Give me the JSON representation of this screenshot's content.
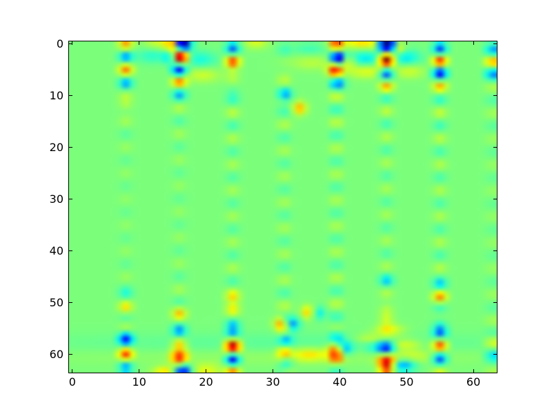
{
  "figure": {
    "background_color": "#ffffff",
    "axes_border_color": "#000000",
    "tick_color": "#000000",
    "tick_label_color": "#000000"
  },
  "chart_data": {
    "type": "heatmap",
    "title": "",
    "xlabel": "",
    "ylabel": "",
    "colormap": "jet",
    "interpolation": "bilinear",
    "grid_size": [
      64,
      64
    ],
    "xlim": [
      -0.5,
      63.5
    ],
    "ylim": [
      63.5,
      -0.5
    ],
    "origin": "upper",
    "background_value": 0,
    "background_color": "#7dff75",
    "value_range": [
      -1,
      1
    ],
    "x_ticks": [
      0,
      10,
      20,
      30,
      40,
      50,
      60
    ],
    "y_ticks": [
      0,
      10,
      20,
      30,
      40,
      50,
      60
    ],
    "x_tick_labels": [
      "0",
      "10",
      "20",
      "30",
      "40",
      "50",
      "60"
    ],
    "y_tick_labels": [
      "0",
      "10",
      "20",
      "30",
      "40",
      "50",
      "60"
    ],
    "grid": false,
    "legend": false,
    "stripe_period_rows": 5.0,
    "stripe_sigma_x": 0.7,
    "stripe_envelope_sigma": 14,
    "columns": [
      {
        "x": 8.0,
        "y0": 0.0,
        "amp_top": 0.2,
        "amp_mid": 0.05,
        "amp_bottom": 0.18
      },
      {
        "x": 16.0,
        "y0": 2.4,
        "amp_top": 0.22,
        "amp_mid": 0.06,
        "amp_bottom": 0.2
      },
      {
        "x": 24.0,
        "y0": 3.3,
        "amp_top": 0.25,
        "amp_mid": 0.1,
        "amp_bottom": 0.22
      },
      {
        "x": 31.7,
        "y0": 0.6,
        "amp_top": 0.22,
        "amp_mid": 0.1,
        "amp_bottom": 0.2
      },
      {
        "x": 39.5,
        "y0": 0.2,
        "amp_top": 0.28,
        "amp_mid": 0.12,
        "amp_bottom": 0.22
      },
      {
        "x": 47.0,
        "y0": 3.0,
        "amp_top": 0.26,
        "amp_mid": 0.1,
        "amp_bottom": 0.22
      },
      {
        "x": 55.0,
        "y0": 3.3,
        "amp_top": 0.28,
        "amp_mid": 0.12,
        "amp_bottom": 0.25
      },
      {
        "x": 62.8,
        "y0": 3.4,
        "amp_top": 0.15,
        "amp_mid": 0.06,
        "amp_bottom": 0.12
      }
    ],
    "blobs": [
      [
        8,
        0.3,
        0.3
      ],
      [
        8,
        2.4,
        -0.3
      ],
      [
        8,
        5.0,
        0.4
      ],
      [
        8,
        7.6,
        -0.3
      ],
      [
        8,
        12,
        0.2
      ],
      [
        15.0,
        0.2,
        0.55
      ],
      [
        16.6,
        0.2,
        -1.0,
        0.8,
        0.9
      ],
      [
        14.8,
        2.6,
        -0.4
      ],
      [
        16.2,
        2.6,
        1.0,
        0.8,
        1.0
      ],
      [
        16,
        5.1,
        -0.65
      ],
      [
        16,
        7.3,
        0.45
      ],
      [
        16,
        9.7,
        -0.3
      ],
      [
        12,
        2.3,
        -0.2,
        1.8,
        1.0
      ],
      [
        13,
        0.1,
        0.2,
        1.5,
        0.7
      ],
      [
        19,
        3.0,
        -0.25,
        1.8,
        1.1
      ],
      [
        19.5,
        6.0,
        0.2,
        1.8,
        1.0
      ],
      [
        24,
        1.1,
        -0.35
      ],
      [
        24,
        3.4,
        0.5
      ],
      [
        24,
        6.0,
        0.35
      ],
      [
        24,
        8.5,
        -0.25
      ],
      [
        27.5,
        0.1,
        0.22,
        1.2,
        0.6
      ],
      [
        31.7,
        0.9,
        -0.35
      ],
      [
        31.7,
        3.1,
        0.25
      ],
      [
        31.7,
        5.4,
        -0.2
      ],
      [
        31.7,
        7.6,
        0.3
      ],
      [
        31.8,
        9.9,
        -0.55
      ],
      [
        34,
        12.4,
        0.45
      ],
      [
        35.5,
        1.0,
        -0.15,
        1.8,
        0.8
      ],
      [
        36,
        3.6,
        0.15,
        2.5,
        1.0
      ],
      [
        39.5,
        0.1,
        0.4
      ],
      [
        39.8,
        2.7,
        -0.7
      ],
      [
        41.3,
        3.3,
        0.35
      ],
      [
        39.3,
        5.1,
        0.6
      ],
      [
        39.8,
        7.6,
        -0.35
      ],
      [
        43.5,
        0.0,
        0.35,
        2.2,
        0.7
      ],
      [
        43.8,
        2.8,
        -0.3,
        2.5,
        1.0
      ],
      [
        44,
        5.3,
        0.25,
        2.2,
        0.9
      ],
      [
        45.3,
        0.3,
        0.3
      ],
      [
        47,
        0.1,
        -1.0,
        1.3,
        1.0
      ],
      [
        48.8,
        0.6,
        0.5
      ],
      [
        47,
        3.1,
        0.95,
        0.8,
        1.0
      ],
      [
        47,
        6.0,
        -0.5
      ],
      [
        47,
        8.2,
        0.3
      ],
      [
        50,
        2.6,
        -0.3,
        1.5,
        1.0
      ],
      [
        50.5,
        5.3,
        0.2,
        1.5,
        0.9
      ],
      [
        55,
        1.2,
        -0.4
      ],
      [
        55,
        3.3,
        0.55
      ],
      [
        55,
        5.6,
        -0.6
      ],
      [
        55,
        8,
        0.25
      ],
      [
        62.8,
        1.4,
        -0.35
      ],
      [
        62.8,
        3.4,
        0.4
      ],
      [
        62.8,
        5.7,
        -0.4
      ],
      [
        8,
        48.5,
        -0.2
      ],
      [
        8,
        51,
        0.3
      ],
      [
        8,
        56.9,
        -0.6
      ],
      [
        8,
        59.9,
        0.55
      ],
      [
        8,
        62.2,
        -0.3
      ],
      [
        16,
        52,
        0.3
      ],
      [
        16,
        55.6,
        -0.35
      ],
      [
        16,
        58.2,
        0.25
      ],
      [
        16,
        60.4,
        0.9,
        0.8,
        1.0
      ],
      [
        16.4,
        63.1,
        -0.95,
        0.9,
        0.9
      ],
      [
        14,
        63.2,
        0.35,
        1.3,
        0.7
      ],
      [
        20,
        62.9,
        0.25,
        1.6,
        0.8
      ],
      [
        24,
        48.9,
        0.25
      ],
      [
        24,
        51.2,
        0.45
      ],
      [
        24,
        53.9,
        -0.45
      ],
      [
        24,
        56.2,
        -0.25
      ],
      [
        24,
        58.4,
        0.85,
        0.8,
        1.1
      ],
      [
        24,
        61.0,
        -0.7
      ],
      [
        24,
        63.2,
        0.35
      ],
      [
        31.2,
        54.0,
        0.5
      ],
      [
        33.0,
        54.1,
        -0.45
      ],
      [
        32,
        57.0,
        -0.3
      ],
      [
        31.7,
        59.2,
        0.4
      ],
      [
        32,
        61.4,
        -0.35
      ],
      [
        32,
        63.2,
        0.25
      ],
      [
        35.3,
        51.8,
        0.4
      ],
      [
        36.8,
        52.0,
        -0.3
      ],
      [
        35.5,
        60.0,
        0.3,
        2.2,
        0.9
      ],
      [
        39.5,
        56.2,
        -0.3
      ],
      [
        39.2,
        58.8,
        0.5
      ],
      [
        41.0,
        58.9,
        -0.35
      ],
      [
        39.5,
        60.9,
        0.45
      ],
      [
        44.5,
        56.9,
        0.2,
        1.5,
        0.7
      ],
      [
        45.5,
        58.7,
        -0.2,
        1.2,
        0.8
      ],
      [
        47.5,
        55.3,
        0.25,
        1.5,
        0.8
      ],
      [
        47,
        45.8,
        -0.25
      ],
      [
        47,
        50.9,
        0.25
      ],
      [
        47,
        55.4,
        0.3
      ],
      [
        47,
        58.6,
        -0.85,
        0.8,
        0.9
      ],
      [
        47,
        61.2,
        1.0,
        0.85,
        1.0
      ],
      [
        49.5,
        62.1,
        -0.45,
        1.3,
        0.8
      ],
      [
        47,
        63.4,
        0.3
      ],
      [
        49.8,
        58.1,
        0.25,
        1.8,
        0.8
      ],
      [
        51,
        60.3,
        0.15,
        1.8,
        0.8
      ],
      [
        55,
        46.8,
        -0.3
      ],
      [
        55,
        48.9,
        0.45
      ],
      [
        55,
        53.8,
        -0.3
      ],
      [
        55,
        55.8,
        -0.35
      ],
      [
        55,
        58.2,
        0.5
      ],
      [
        55,
        60.9,
        -0.4
      ],
      [
        62.8,
        57.5,
        0.2
      ],
      [
        62.8,
        60,
        -0.3
      ],
      [
        32,
        58,
        -0.08,
        28,
        1.5
      ],
      [
        32,
        60.3,
        0.07,
        28,
        1.2
      ]
    ]
  }
}
